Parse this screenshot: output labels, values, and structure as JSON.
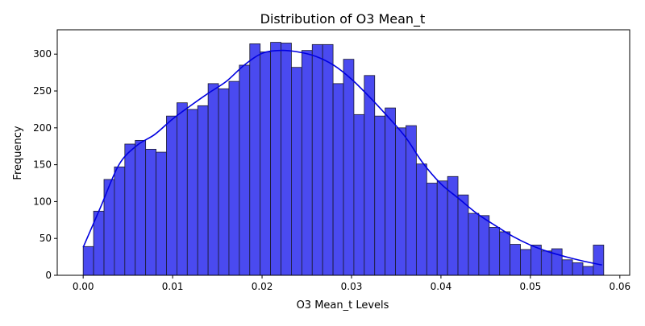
{
  "chart_data": {
    "type": "bar",
    "title": "Distribution of O3 Mean_t",
    "xlabel": "O3 Mean_t Levels",
    "ylabel": "Frequency",
    "xlim": [
      -0.0029,
      0.0611
    ],
    "ylim": [
      0,
      333
    ],
    "x_ticks": [
      0.0,
      0.01,
      0.02,
      0.03,
      0.04,
      0.05,
      0.06
    ],
    "x_tick_labels": [
      "0.00",
      "0.01",
      "0.02",
      "0.03",
      "0.04",
      "0.05",
      "0.06"
    ],
    "y_ticks": [
      0,
      50,
      100,
      150,
      200,
      250,
      300
    ],
    "y_tick_labels": [
      "0",
      "50",
      "100",
      "150",
      "200",
      "250",
      "300"
    ],
    "bin_start": 0.0,
    "bin_end": 0.0582,
    "values": [
      39,
      87,
      130,
      147,
      178,
      183,
      171,
      167,
      216,
      234,
      225,
      230,
      260,
      253,
      263,
      285,
      314,
      303,
      316,
      315,
      282,
      305,
      313,
      313,
      260,
      293,
      218,
      271,
      216,
      227,
      200,
      203,
      151,
      125,
      128,
      134,
      109,
      84,
      81,
      65,
      59,
      42,
      35,
      41,
      33,
      36,
      21,
      17,
      12,
      41
    ],
    "kde": {
      "x": [
        0.0,
        0.002,
        0.004,
        0.006,
        0.008,
        0.01,
        0.012,
        0.014,
        0.016,
        0.018,
        0.02,
        0.022,
        0.024,
        0.026,
        0.028,
        0.03,
        0.032,
        0.034,
        0.036,
        0.038,
        0.04,
        0.042,
        0.044,
        0.046,
        0.048,
        0.05,
        0.052,
        0.054,
        0.056,
        0.058
      ],
      "y": [
        38,
        94,
        150,
        176,
        191,
        212,
        230,
        247,
        263,
        285,
        301,
        305,
        303,
        297,
        285,
        266,
        242,
        216,
        188,
        152,
        124,
        104,
        84,
        68,
        53,
        41,
        32,
        25,
        19,
        14
      ]
    },
    "bar_fill": "#4a4af0",
    "bar_edge": "#1a1a2e",
    "kde_color": "#0000e0",
    "grid": false
  }
}
